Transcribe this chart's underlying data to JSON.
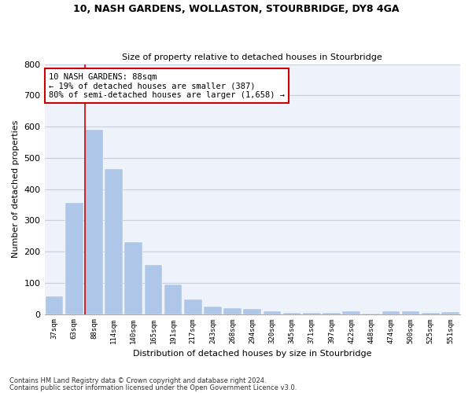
{
  "title1": "10, NASH GARDENS, WOLLASTON, STOURBRIDGE, DY8 4GA",
  "title2": "Size of property relative to detached houses in Stourbridge",
  "xlabel": "Distribution of detached houses by size in Stourbridge",
  "ylabel": "Number of detached properties",
  "categories": [
    "37sqm",
    "63sqm",
    "88sqm",
    "114sqm",
    "140sqm",
    "165sqm",
    "191sqm",
    "217sqm",
    "243sqm",
    "268sqm",
    "294sqm",
    "320sqm",
    "345sqm",
    "371sqm",
    "397sqm",
    "422sqm",
    "448sqm",
    "474sqm",
    "500sqm",
    "525sqm",
    "551sqm"
  ],
  "values": [
    57,
    357,
    590,
    465,
    230,
    157,
    95,
    46,
    23,
    20,
    16,
    10,
    5,
    4,
    3,
    10,
    2,
    10,
    8,
    5,
    7
  ],
  "bar_color": "#aec6e8",
  "bar_edgecolor": "#aec6e8",
  "highlight_line_index": 2,
  "highlight_line_color": "#cc0000",
  "annotation_text": "10 NASH GARDENS: 88sqm\n← 19% of detached houses are smaller (387)\n80% of semi-detached houses are larger (1,658) →",
  "annotation_box_color": "#ffffff",
  "annotation_box_edgecolor": "#cc0000",
  "ylim": [
    0,
    800
  ],
  "yticks": [
    0,
    100,
    200,
    300,
    400,
    500,
    600,
    700,
    800
  ],
  "grid_color": "#c8d0e0",
  "background_color": "#eef2fa",
  "footer1": "Contains HM Land Registry data © Crown copyright and database right 2024.",
  "footer2": "Contains public sector information licensed under the Open Government Licence v3.0."
}
